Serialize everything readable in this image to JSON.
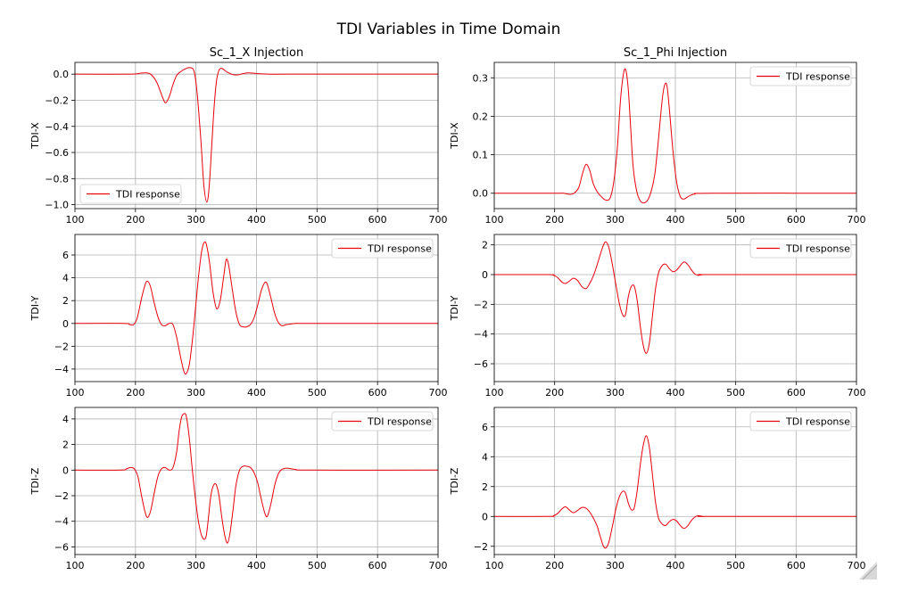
{
  "figure": {
    "title": "TDI Variables in Time Domain"
  },
  "colors": {
    "line": "#e8000b"
  },
  "chart_data": [
    {
      "type": "line",
      "title": "Sc_1_X Injection",
      "ylabel": "TDI-X",
      "xlim": [
        100,
        700
      ],
      "ylim": [
        -1.03,
        0.09
      ],
      "xticks": [
        100,
        200,
        300,
        400,
        500,
        600,
        700
      ],
      "xtick_labels": [
        "100",
        "200",
        "300",
        "400",
        "500",
        "600",
        "700"
      ],
      "yticks": [
        -1.0,
        -0.8,
        -0.6,
        -0.4,
        -0.2,
        0.0
      ],
      "ytick_labels": [
        "−1.0",
        "−0.8",
        "−0.6",
        "−0.4",
        "−0.2",
        "0.0"
      ],
      "grid": true,
      "legend": "lower-left",
      "series": [
        {
          "name": "TDI response",
          "x": [
            100,
            190,
            205,
            215,
            225,
            235,
            245,
            250,
            256,
            262,
            268,
            275,
            282,
            290,
            297,
            302,
            308,
            313,
            318,
            322,
            326,
            330,
            334,
            338,
            342,
            346,
            350,
            356,
            362,
            370,
            378,
            388,
            400,
            420,
            460,
            700
          ],
          "y": [
            0,
            0,
            0.005,
            0.01,
            0,
            -0.06,
            -0.18,
            -0.22,
            -0.17,
            -0.08,
            -0.01,
            0.02,
            0.04,
            0.05,
            0.02,
            -0.15,
            -0.5,
            -0.85,
            -0.98,
            -0.85,
            -0.55,
            -0.25,
            -0.05,
            0.03,
            0.045,
            0.035,
            0.02,
            0.005,
            -0.005,
            -0.005,
            0.005,
            0.01,
            0.005,
            0,
            0,
            0
          ]
        }
      ]
    },
    {
      "type": "line",
      "title": "Sc_1_Phi Injection",
      "ylabel": "TDI-X",
      "xlim": [
        100,
        700
      ],
      "ylim": [
        -0.04,
        0.34
      ],
      "xticks": [
        100,
        200,
        300,
        400,
        500,
        600,
        700
      ],
      "xtick_labels": [
        "100",
        "200",
        "300",
        "400",
        "500",
        "600",
        "700"
      ],
      "yticks": [
        0.0,
        0.1,
        0.2,
        0.3
      ],
      "ytick_labels": [
        "0.0",
        "0.1",
        "0.2",
        "0.3"
      ],
      "grid": true,
      "legend": "top-right",
      "series": [
        {
          "name": "TDI response",
          "x": [
            100,
            200,
            215,
            225,
            232,
            240,
            246,
            252,
            258,
            264,
            270,
            278,
            285,
            292,
            298,
            304,
            309,
            314,
            318,
            322,
            326,
            330,
            336,
            342,
            348,
            354,
            360,
            366,
            372,
            378,
            382,
            386,
            390,
            396,
            402,
            408,
            414,
            422,
            432,
            460,
            700
          ],
          "y": [
            0,
            0,
            0,
            -0.003,
            0,
            0.015,
            0.05,
            0.075,
            0.06,
            0.025,
            0.005,
            -0.01,
            -0.018,
            -0.012,
            0.03,
            0.12,
            0.24,
            0.31,
            0.32,
            0.27,
            0.17,
            0.07,
            0.005,
            -0.02,
            -0.025,
            -0.018,
            0.005,
            0.05,
            0.14,
            0.24,
            0.28,
            0.28,
            0.22,
            0.11,
            0.03,
            -0.008,
            -0.015,
            -0.008,
            -0.002,
            0,
            0
          ]
        }
      ]
    },
    {
      "type": "line",
      "title": "",
      "ylabel": "TDI-Y",
      "xlim": [
        100,
        700
      ],
      "ylim": [
        -5.1,
        7.8
      ],
      "xticks": [
        100,
        200,
        300,
        400,
        500,
        600,
        700
      ],
      "xtick_labels": [
        "100",
        "200",
        "300",
        "400",
        "500",
        "600",
        "700"
      ],
      "yticks": [
        -4,
        -2,
        0,
        2,
        4,
        6
      ],
      "ytick_labels": [
        "−4",
        "−2",
        "0",
        "2",
        "4",
        "6"
      ],
      "grid": true,
      "legend": "top-right",
      "series": [
        {
          "name": "TDI response",
          "x": [
            100,
            180,
            190,
            197,
            203,
            210,
            216,
            220,
            225,
            231,
            237,
            243,
            249,
            256,
            262,
            268,
            274,
            280,
            284,
            289,
            294,
            299,
            304,
            310,
            316,
            322,
            328,
            334,
            340,
            346,
            350,
            354,
            360,
            366,
            372,
            378,
            384,
            390,
            396,
            402,
            408,
            414,
            418,
            424,
            430,
            436,
            442,
            450,
            465,
            490,
            700
          ],
          "y": [
            0,
            0,
            -0.1,
            -0.1,
            0.5,
            2.2,
            3.4,
            3.7,
            3.2,
            1.8,
            0.6,
            -0.1,
            -0.2,
            0,
            -0.1,
            -1.2,
            -2.8,
            -4.2,
            -4.4,
            -3.6,
            -1.5,
            1.2,
            4.0,
            6.5,
            7.1,
            5.5,
            2.8,
            1.3,
            2.0,
            4.2,
            5.6,
            5.1,
            3.0,
            1.0,
            -0.1,
            -0.3,
            -0.3,
            -0.1,
            0.5,
            1.6,
            2.9,
            3.6,
            3.4,
            2.2,
            0.9,
            0.1,
            -0.2,
            -0.1,
            0,
            0,
            0
          ]
        }
      ]
    },
    {
      "type": "line",
      "title": "",
      "ylabel": "TDI-Y",
      "xlim": [
        100,
        700
      ],
      "ylim": [
        -7.2,
        2.7
      ],
      "xticks": [
        100,
        200,
        300,
        400,
        500,
        600,
        700
      ],
      "xtick_labels": [
        "100",
        "200",
        "300",
        "400",
        "500",
        "600",
        "700"
      ],
      "yticks": [
        -6,
        -4,
        -2,
        0,
        2
      ],
      "ytick_labels": [
        "−6",
        "−4",
        "−2",
        "0",
        "2"
      ],
      "grid": true,
      "legend": "top-right",
      "series": [
        {
          "name": "TDI response",
          "x": [
            100,
            190,
            198,
            205,
            212,
            218,
            224,
            231,
            238,
            245,
            252,
            258,
            264,
            270,
            276,
            281,
            285,
            290,
            296,
            302,
            308,
            314,
            318,
            322,
            327,
            332,
            337,
            342,
            347,
            352,
            357,
            362,
            367,
            372,
            378,
            384,
            390,
            396,
            402,
            408,
            414,
            420,
            426,
            432,
            438,
            446,
            460,
            700
          ],
          "y": [
            0,
            0,
            -0.05,
            -0.2,
            -0.5,
            -0.6,
            -0.45,
            -0.25,
            -0.4,
            -0.8,
            -0.95,
            -0.6,
            -0.1,
            0.6,
            1.4,
            2.0,
            2.2,
            1.8,
            0.6,
            -0.8,
            -2.1,
            -2.8,
            -2.6,
            -1.5,
            -0.8,
            -0.8,
            -1.8,
            -3.5,
            -4.8,
            -5.3,
            -4.6,
            -2.8,
            -1.0,
            0.1,
            0.6,
            0.7,
            0.4,
            0.2,
            0.3,
            0.6,
            0.85,
            0.7,
            0.35,
            0.05,
            -0.05,
            0,
            0,
            0
          ]
        }
      ]
    },
    {
      "type": "line",
      "title": "",
      "ylabel": "TDI-Z",
      "xlim": [
        100,
        700
      ],
      "ylim": [
        -6.6,
        4.9
      ],
      "xticks": [
        100,
        200,
        300,
        400,
        500,
        600,
        700
      ],
      "xtick_labels": [
        "100",
        "200",
        "300",
        "400",
        "500",
        "600",
        "700"
      ],
      "yticks": [
        -6,
        -4,
        -2,
        0,
        2,
        4
      ],
      "ytick_labels": [
        "−6",
        "−4",
        "−2",
        "0",
        "2",
        "4"
      ],
      "grid": true,
      "legend": "top-right",
      "series": [
        {
          "name": "TDI response",
          "x": [
            100,
            175,
            185,
            192,
            198,
            204,
            210,
            216,
            220,
            225,
            231,
            237,
            243,
            249,
            256,
            262,
            268,
            272,
            276,
            280,
            284,
            289,
            294,
            299,
            304,
            310,
            316,
            320,
            324,
            328,
            333,
            338,
            343,
            348,
            352,
            356,
            361,
            366,
            372,
            378,
            384,
            390,
            396,
            402,
            408,
            414,
            418,
            424,
            430,
            436,
            442,
            450,
            465,
            490,
            700
          ],
          "y": [
            0,
            0,
            0.1,
            0.2,
            0.1,
            -0.5,
            -2.0,
            -3.3,
            -3.7,
            -3.2,
            -1.8,
            -0.5,
            0.1,
            0.2,
            0.0,
            0.2,
            1.4,
            3.0,
            4.1,
            4.4,
            4.2,
            2.5,
            0.0,
            -2.2,
            -4.0,
            -5.2,
            -5.3,
            -4.0,
            -2.2,
            -1.3,
            -1.1,
            -2.0,
            -3.8,
            -5.2,
            -5.7,
            -5.0,
            -3.2,
            -1.2,
            0.0,
            0.3,
            0.3,
            0.2,
            -0.2,
            -1.0,
            -2.3,
            -3.4,
            -3.6,
            -2.6,
            -1.2,
            -0.3,
            0.05,
            0.15,
            0.05,
            0,
            0
          ]
        }
      ]
    },
    {
      "type": "line",
      "title": "",
      "ylabel": "TDI-Z",
      "xlim": [
        100,
        700
      ],
      "ylim": [
        -2.55,
        7.3
      ],
      "xticks": [
        100,
        200,
        300,
        400,
        500,
        600,
        700
      ],
      "xtick_labels": [
        "100",
        "200",
        "300",
        "400",
        "500",
        "600",
        "700"
      ],
      "yticks": [
        -2,
        0,
        2,
        4,
        6
      ],
      "ytick_labels": [
        "−2",
        "0",
        "2",
        "4",
        "6"
      ],
      "grid": true,
      "legend": "top-right",
      "series": [
        {
          "name": "TDI response",
          "x": [
            100,
            190,
            198,
            205,
            212,
            218,
            224,
            231,
            238,
            245,
            252,
            258,
            264,
            270,
            276,
            281,
            285,
            290,
            296,
            302,
            308,
            314,
            318,
            322,
            327,
            332,
            337,
            342,
            347,
            352,
            357,
            362,
            367,
            372,
            378,
            384,
            390,
            396,
            402,
            408,
            414,
            420,
            426,
            432,
            438,
            446,
            460,
            700
          ],
          "y": [
            0,
            0,
            0.05,
            0.2,
            0.5,
            0.65,
            0.45,
            0.25,
            0.4,
            0.6,
            0.55,
            0.3,
            -0.1,
            -0.6,
            -1.4,
            -2.0,
            -2.1,
            -1.7,
            -0.6,
            0.6,
            1.4,
            1.7,
            1.5,
            0.9,
            0.45,
            0.6,
            1.8,
            3.5,
            4.8,
            5.4,
            4.6,
            2.8,
            1.0,
            -0.1,
            -0.5,
            -0.6,
            -0.35,
            -0.2,
            -0.3,
            -0.6,
            -0.8,
            -0.65,
            -0.3,
            -0.05,
            0.05,
            0,
            0,
            0
          ]
        }
      ]
    }
  ]
}
